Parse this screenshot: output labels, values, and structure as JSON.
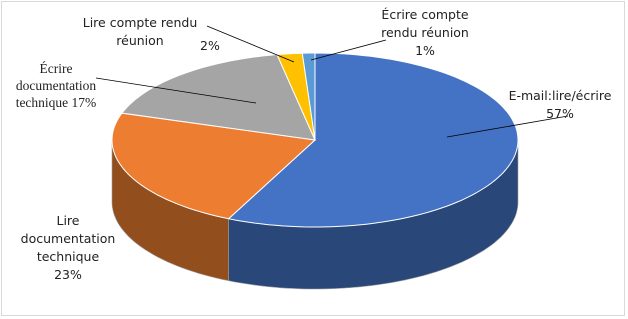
{
  "chart_data": {
    "type": "pie",
    "categories": [
      "E-mail:lire/écrire",
      "Lire documentation technique",
      "Écrire documentation technique",
      "Lire compte rendu réunion",
      "Écrire compte rendu réunion"
    ],
    "values": [
      57,
      23,
      17,
      2,
      1
    ],
    "value_labels": [
      "57%",
      "23%",
      "17%",
      "2%",
      "1%"
    ],
    "colors": [
      "#4472c4",
      "#ed7d31",
      "#a5a5a5",
      "#ffc000",
      "#5b9bd5"
    ]
  }
}
